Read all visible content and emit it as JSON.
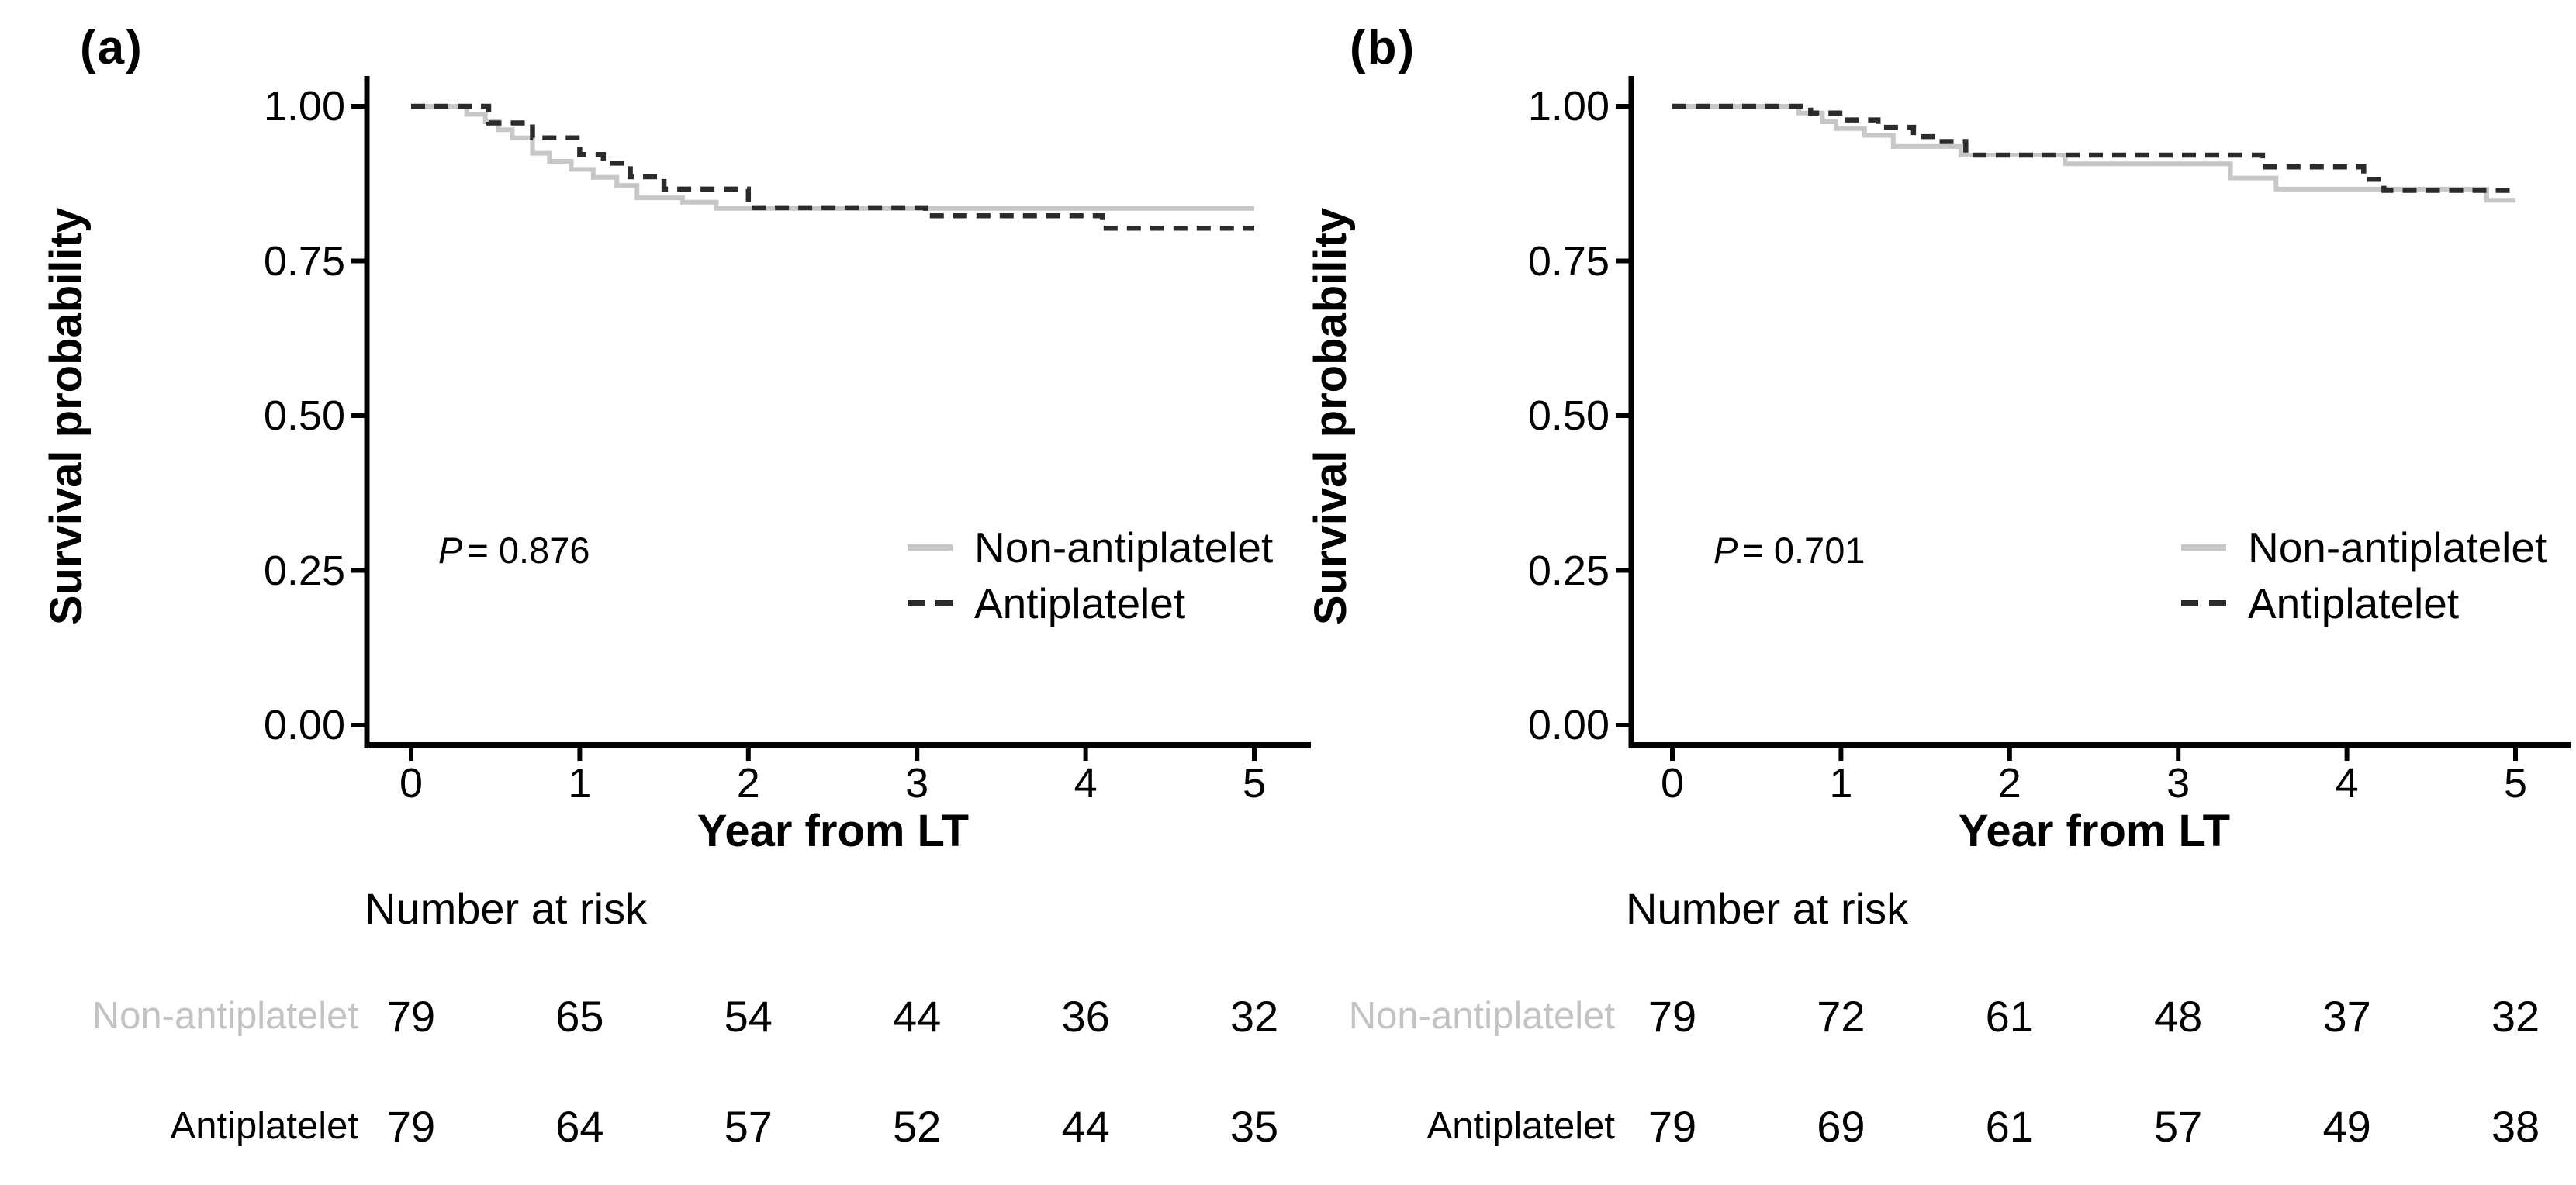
{
  "figure": {
    "background": "#ffffff",
    "description": "Two-panel Kaplan-Meier survival curves comparing Non-antiplatelet vs Antiplatelet groups after liver transplantation"
  },
  "colors": {
    "non_antiplatelet_line": "#c7c7c7",
    "antiplatelet_line": "#2b2b2b",
    "axis": "#000000",
    "risk_label_gray": "#c3c3c3",
    "text": "#000000"
  },
  "chart_data": [
    {
      "type": "line",
      "subtype": "kaplan-meier-step",
      "title": "(a)",
      "xlabel": "Year from LT",
      "ylabel": "Survival probability",
      "xlim": [
        0,
        5
      ],
      "ylim": [
        0,
        1
      ],
      "grid": false,
      "legend_position": "inside-right-middle",
      "x_ticks": [
        0,
        1,
        2,
        3,
        4,
        5
      ],
      "x_tick_labels": [
        "0",
        "1",
        "2",
        "3",
        "4",
        "5"
      ],
      "y_ticks": [
        1.0,
        0.75,
        0.5,
        0.25,
        0.0
      ],
      "y_tick_labels": [
        "1.00",
        "0.75",
        "0.50",
        "0.25",
        "0.00"
      ],
      "annotation": {
        "p_italic": "P",
        "p_text": "= 0.876"
      },
      "series": [
        {
          "name": "Non-antiplatelet",
          "color": "#c7c7c7",
          "line_style": "solid",
          "points": [
            [
              0,
              1.0
            ],
            [
              0.33,
              0.987
            ],
            [
              0.44,
              0.975
            ],
            [
              0.52,
              0.962
            ],
            [
              0.6,
              0.949
            ],
            [
              0.72,
              0.924
            ],
            [
              0.82,
              0.911
            ],
            [
              0.95,
              0.898
            ],
            [
              1.08,
              0.885
            ],
            [
              1.22,
              0.872
            ],
            [
              1.34,
              0.852
            ],
            [
              1.61,
              0.845
            ],
            [
              1.81,
              0.835
            ],
            [
              5.0,
              0.835
            ]
          ]
        },
        {
          "name": "Antiplatelet",
          "color": "#2b2b2b",
          "line_style": "dashed",
          "points": [
            [
              0,
              1.0
            ],
            [
              0.46,
              0.973
            ],
            [
              0.72,
              0.949
            ],
            [
              1.0,
              0.922
            ],
            [
              1.14,
              0.908
            ],
            [
              1.3,
              0.886
            ],
            [
              1.5,
              0.866
            ],
            [
              2.0,
              0.836
            ],
            [
              3.05,
              0.823
            ],
            [
              4.1,
              0.803
            ],
            [
              5.0,
              0.803
            ]
          ]
        }
      ],
      "number_at_risk": {
        "header": "Number at risk",
        "rows": [
          {
            "name": "Non-antiplatelet",
            "label_color": "#c3c3c3",
            "values": [
              79,
              65,
              54,
              44,
              36,
              32
            ]
          },
          {
            "name": "Antiplatelet",
            "label_color": "#000000",
            "values": [
              79,
              64,
              57,
              52,
              44,
              35
            ]
          }
        ]
      }
    },
    {
      "type": "line",
      "subtype": "kaplan-meier-step",
      "title": "(b)",
      "xlabel": "Year from LT",
      "ylabel": "Survival probability",
      "xlim": [
        0,
        5
      ],
      "ylim": [
        0,
        1
      ],
      "grid": false,
      "legend_position": "inside-right-middle",
      "x_ticks": [
        0,
        1,
        2,
        3,
        4,
        5
      ],
      "x_tick_labels": [
        "0",
        "1",
        "2",
        "3",
        "4",
        "5"
      ],
      "y_ticks": [
        1.0,
        0.75,
        0.5,
        0.25,
        0.0
      ],
      "y_tick_labels": [
        "1.00",
        "0.75",
        "0.50",
        "0.25",
        "0.00"
      ],
      "annotation": {
        "p_italic": "P",
        "p_text": "= 0.701"
      },
      "series": [
        {
          "name": "Non-antiplatelet",
          "color": "#c7c7c7",
          "line_style": "solid",
          "points": [
            [
              0,
              1.0
            ],
            [
              0.75,
              0.989
            ],
            [
              0.89,
              0.975
            ],
            [
              0.97,
              0.964
            ],
            [
              1.14,
              0.953
            ],
            [
              1.31,
              0.935
            ],
            [
              1.71,
              0.921
            ],
            [
              2.33,
              0.907
            ],
            [
              3.31,
              0.884
            ],
            [
              3.58,
              0.866
            ],
            [
              4.83,
              0.848
            ],
            [
              5.0,
              0.848
            ]
          ]
        },
        {
          "name": "Antiplatelet",
          "color": "#2b2b2b",
          "line_style": "dashed",
          "points": [
            [
              0,
              1.0
            ],
            [
              0.82,
              0.989
            ],
            [
              1.02,
              0.978
            ],
            [
              1.22,
              0.966
            ],
            [
              1.43,
              0.951
            ],
            [
              1.58,
              0.943
            ],
            [
              1.74,
              0.921
            ],
            [
              3.5,
              0.902
            ],
            [
              4.1,
              0.882
            ],
            [
              4.22,
              0.864
            ],
            [
              5.0,
              0.864
            ]
          ]
        }
      ],
      "number_at_risk": {
        "header": "Number at risk",
        "rows": [
          {
            "name": "Non-antiplatelet",
            "label_color": "#c3c3c3",
            "values": [
              79,
              72,
              61,
              48,
              37,
              32
            ]
          },
          {
            "name": "Antiplatelet",
            "label_color": "#000000",
            "values": [
              79,
              69,
              61,
              57,
              49,
              38
            ]
          }
        ]
      }
    }
  ]
}
